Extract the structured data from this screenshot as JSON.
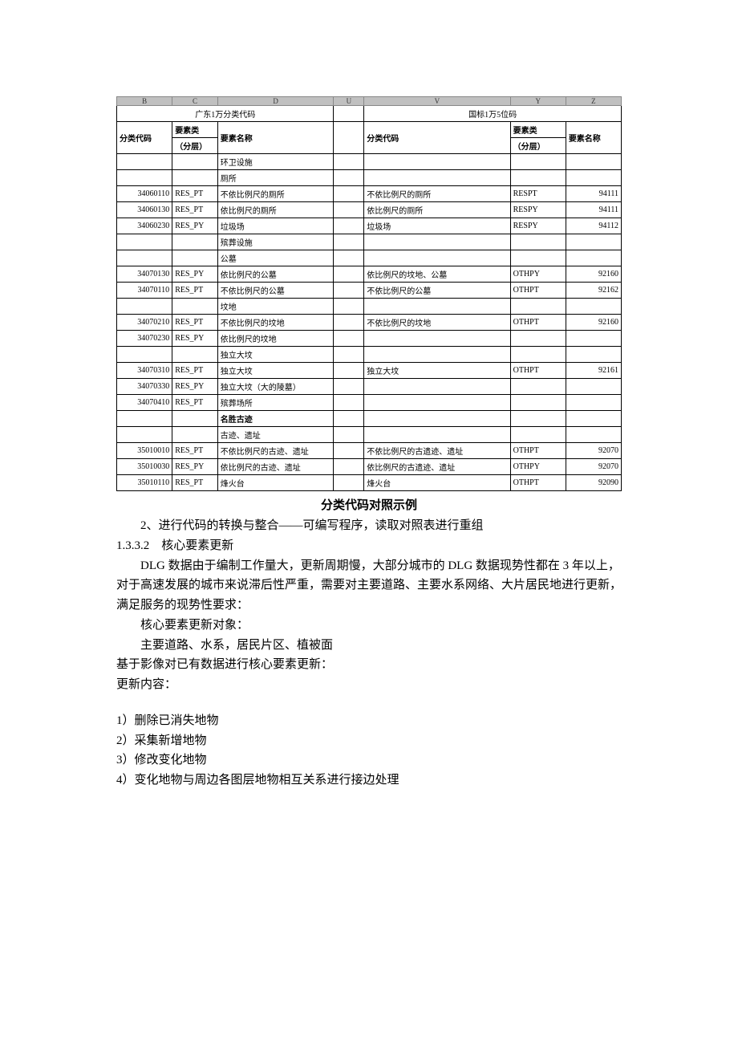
{
  "colLetters": [
    "B",
    "C",
    "D",
    "U",
    "V",
    "Y",
    "Z"
  ],
  "tableLeftTitle": "广东1万分类代码",
  "tableRightTitle": "国标1万5位码",
  "headers": {
    "leftCode": "分类代码",
    "leftLayer": "要素类",
    "leftSubLayer": "（分层）",
    "leftName": "要素名称",
    "rightCode": "分类代码",
    "rightLayer": "要素类",
    "rightSubLayer": "（分层）",
    "rightName": "要素名称"
  },
  "rows": [
    {
      "lc": "",
      "ll": "",
      "ln": "环卫设施",
      "rc": "",
      "rl": "",
      "rn": ""
    },
    {
      "lc": "",
      "ll": "",
      "ln": "厕所",
      "rc": "",
      "rl": "",
      "rn": ""
    },
    {
      "lc": "34060110",
      "ll": "RES_PT",
      "ln": "不依比例尺的厕所",
      "rc": "不依比例尺的厕所",
      "rl": "RESPT",
      "rn": "94111"
    },
    {
      "lc": "34060130",
      "ll": "RES_PT",
      "ln": "依比例尺的厕所",
      "rc": "依比例尺的厕所",
      "rl": "RESPY",
      "rn": "94111"
    },
    {
      "lc": "34060230",
      "ll": "RES_PY",
      "ln": "垃圾场",
      "rc": "垃圾场",
      "rl": "RESPY",
      "rn": "94112"
    },
    {
      "lc": "",
      "ll": "",
      "ln": "殡葬设施",
      "rc": "",
      "rl": "",
      "rn": ""
    },
    {
      "lc": "",
      "ll": "",
      "ln": "公墓",
      "rc": "",
      "rl": "",
      "rn": ""
    },
    {
      "lc": "34070130",
      "ll": "RES_PY",
      "ln": "依比例尺的公墓",
      "rc": "依比例尺的坟地、公墓",
      "rl": "OTHPY",
      "rn": "92160"
    },
    {
      "lc": "34070110",
      "ll": "RES_PT",
      "ln": "不依比例尺的公墓",
      "rc": "不依比例尺的公墓",
      "rl": "OTHPT",
      "rn": "92162"
    },
    {
      "lc": "",
      "ll": "",
      "ln": "坟地",
      "rc": "",
      "rl": "",
      "rn": ""
    },
    {
      "lc": "34070210",
      "ll": "RES_PT",
      "ln": "不依比例尺的坟地",
      "rc": "不依比例尺的坟地",
      "rl": "OTHPT",
      "rn": "92160"
    },
    {
      "lc": "34070230",
      "ll": "RES_PY",
      "ln": "依比例尺的坟地",
      "rc": "",
      "rl": "",
      "rn": ""
    },
    {
      "lc": "",
      "ll": "",
      "ln": "独立大坟",
      "rc": "",
      "rl": "",
      "rn": ""
    },
    {
      "lc": "34070310",
      "ll": "RES_PT",
      "ln": "独立大坟",
      "rc": "独立大坟",
      "rl": "OTHPT",
      "rn": "92161"
    },
    {
      "lc": "34070330",
      "ll": "RES_PY",
      "ln": "独立大坟（大的陵墓）",
      "rc": "",
      "rl": "",
      "rn": ""
    },
    {
      "lc": "34070410",
      "ll": "RES_PT",
      "ln": "殡葬场所",
      "rc": "",
      "rl": "",
      "rn": ""
    },
    {
      "lc": "",
      "ll": "",
      "ln": "名胜古迹",
      "rc": "",
      "rl": "",
      "rn": "",
      "bold": true
    },
    {
      "lc": "",
      "ll": "",
      "ln": "古迹、遗址",
      "rc": "",
      "rl": "",
      "rn": ""
    },
    {
      "lc": "35010010",
      "ll": "RES_PT",
      "ln": "不依比例尺的古迹、遗址",
      "rc": "不依比例尺的古遗迹、遗址",
      "rl": "OTHPT",
      "rn": "92070"
    },
    {
      "lc": "35010030",
      "ll": "RES_PY",
      "ln": "依比例尺的古迹、遗址",
      "rc": "依比例尺的古遗迹、遗址",
      "rl": "OTHPY",
      "rn": "92070"
    },
    {
      "lc": "35010110",
      "ll": "RES_PT",
      "ln": "烽火台",
      "rc": "烽火台",
      "rl": "OTHPT",
      "rn": "92090"
    }
  ],
  "caption": "分类代码对照示例",
  "line2": "2、进行代码的转换与整合——可编写程序，读取对照表进行重组",
  "sectionNo": "1.3.3.2",
  "sectionTitle": "核心要素更新",
  "para1": "DLG 数据由于编制工作量大，更新周期慢，大部分城市的 DLG 数据现势性都在 3 年以上，对于高速发展的城市来说滞后性严重，需要对主要道路、主要水系网络、大片居民地进行更新，满足服务的现势性要求：",
  "para2": "核心要素更新对象：",
  "para3": "主要道路、水系，居民片区、植被面",
  "para4": "基于影像对已有数据进行核心要素更新：",
  "para5": "更新内容：",
  "list": [
    "1）删除已消失地物",
    "2）采集新增地物",
    "3）修改变化地物",
    "4）变化地物与周边各图层地物相互关系进行接边处理"
  ],
  "colors": {
    "headerBg": "#c0c0c0",
    "border": "#000000",
    "text": "#000000"
  },
  "colWidths": {
    "lc": "11%",
    "ll": "9%",
    "ln": "22%",
    "gap": "2%",
    "rc": "28%",
    "rl": "11%",
    "rn": "11%"
  }
}
